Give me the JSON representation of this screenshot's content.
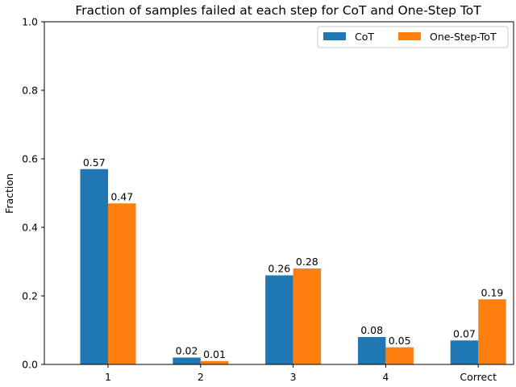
{
  "chart_data": {
    "type": "bar",
    "title": "Fraction of samples failed at each step for CoT and One-Step ToT",
    "xlabel": "",
    "ylabel": "Fraction",
    "categories": [
      "1",
      "2",
      "3",
      "4",
      "Correct"
    ],
    "series": [
      {
        "name": "CoT",
        "color": "#1f77b4",
        "values": [
          0.57,
          0.02,
          0.26,
          0.08,
          0.07
        ],
        "labels": [
          "0.57",
          "0.02",
          "0.26",
          "0.08",
          "0.07"
        ]
      },
      {
        "name": "One-Step-ToT",
        "color": "#ff7f0e",
        "values": [
          0.47,
          0.01,
          0.28,
          0.05,
          0.19
        ],
        "labels": [
          "0.47",
          "0.01",
          "0.28",
          "0.05",
          "0.19"
        ]
      }
    ],
    "ylim": [
      0,
      1.0
    ],
    "yticks": [
      "0.0",
      "0.2",
      "0.4",
      "0.6",
      "0.8",
      "1.0"
    ],
    "grid": false,
    "legend_position": "top-right"
  }
}
